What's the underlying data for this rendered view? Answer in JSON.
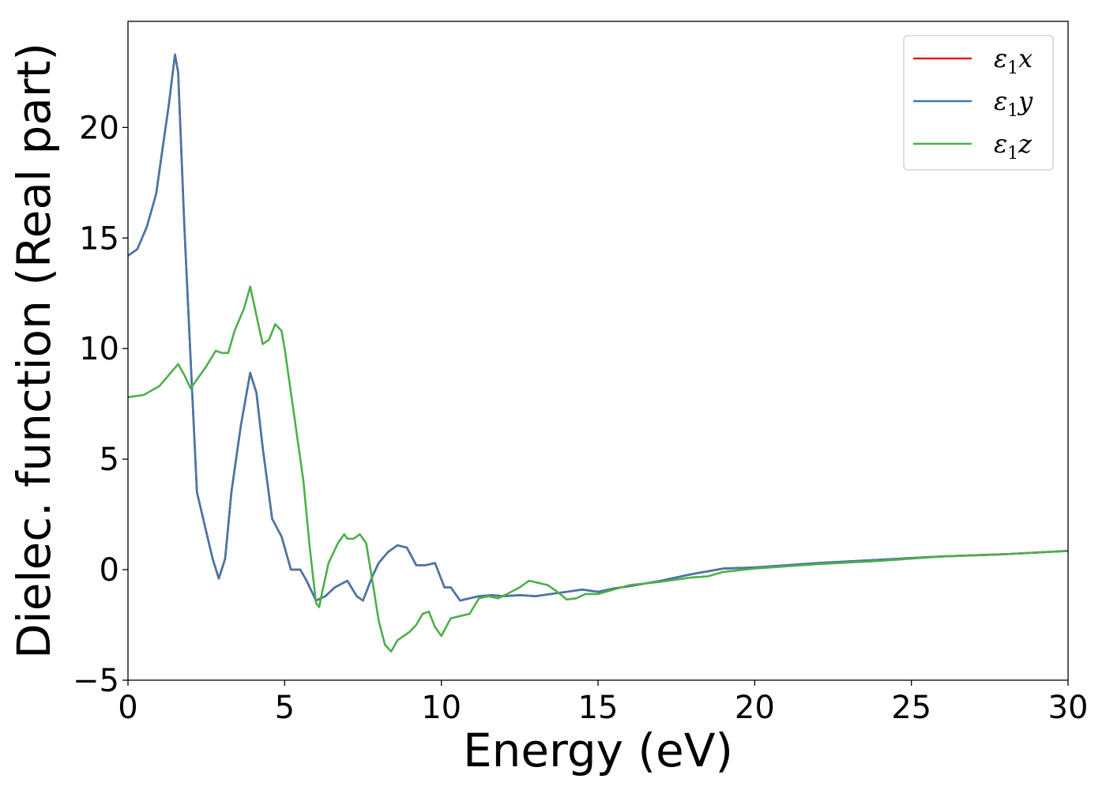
{
  "chart_data": {
    "type": "line",
    "xlabel": "Energy (eV)",
    "ylabel": "Dielec. function (Real part)",
    "xlim": [
      0,
      30
    ],
    "ylim": [
      -5,
      24.8
    ],
    "xticks": [
      0,
      5,
      10,
      15,
      20,
      25,
      30
    ],
    "yticks": [
      -5,
      0,
      5,
      10,
      15,
      20
    ],
    "xtick_labels": [
      "0",
      "5",
      "10",
      "15",
      "20",
      "25",
      "30"
    ],
    "ytick_labels": [
      "−5",
      "0",
      "5",
      "10",
      "15",
      "20"
    ],
    "grid": false,
    "legend_position": "top-right",
    "series": [
      {
        "name": "ε1x",
        "legend_main": "ε",
        "legend_sub": "1",
        "legend_axis": "x",
        "color": "#e41a1c",
        "x": [
          0,
          0.3,
          0.6,
          0.9,
          1.1,
          1.3,
          1.5,
          1.6,
          1.8,
          2.0,
          2.2,
          2.4,
          2.7,
          2.9,
          3.1,
          3.3,
          3.6,
          3.9,
          4.1,
          4.3,
          4.6,
          4.9,
          5.2,
          5.5,
          5.7,
          6.0,
          6.3,
          6.6,
          7.0,
          7.3,
          7.5,
          7.8,
          8.0,
          8.3,
          8.6,
          8.9,
          9.2,
          9.5,
          9.8,
          10.1,
          10.3,
          10.6,
          10.9,
          11.2,
          11.6,
          12.0,
          12.5,
          13.0,
          13.5,
          14.0,
          14.5,
          15.0,
          15.5,
          16.0,
          17.0,
          18.0,
          19.0,
          20.0,
          22.0,
          24.0,
          26.0,
          28.0,
          30.0
        ],
        "values": [
          14.2,
          14.5,
          15.5,
          17.0,
          19.0,
          21.0,
          23.3,
          22.5,
          15.5,
          9.5,
          3.5,
          2.3,
          0.5,
          -0.4,
          0.5,
          3.5,
          6.5,
          8.9,
          8.0,
          5.5,
          2.3,
          1.5,
          0.0,
          0.0,
          -0.5,
          -1.4,
          -1.2,
          -0.8,
          -0.5,
          -1.2,
          -1.4,
          -0.3,
          0.3,
          0.8,
          1.1,
          1.0,
          0.2,
          0.2,
          0.3,
          -0.8,
          -0.8,
          -1.4,
          -1.3,
          -1.2,
          -1.15,
          -1.2,
          -1.15,
          -1.2,
          -1.1,
          -1.0,
          -0.9,
          -1.0,
          -0.85,
          -0.75,
          -0.5,
          -0.2,
          0.05,
          0.1,
          0.3,
          0.45,
          0.6,
          0.7,
          0.85
        ]
      },
      {
        "name": "ε1y",
        "legend_main": "ε",
        "legend_sub": "1",
        "legend_axis": "y",
        "color": "#4477aa",
        "x": [
          0,
          0.3,
          0.6,
          0.9,
          1.1,
          1.3,
          1.5,
          1.6,
          1.8,
          2.0,
          2.2,
          2.4,
          2.7,
          2.9,
          3.1,
          3.3,
          3.6,
          3.9,
          4.1,
          4.3,
          4.6,
          4.9,
          5.2,
          5.5,
          5.7,
          6.0,
          6.3,
          6.6,
          7.0,
          7.3,
          7.5,
          7.8,
          8.0,
          8.3,
          8.6,
          8.9,
          9.2,
          9.5,
          9.8,
          10.1,
          10.3,
          10.6,
          10.9,
          11.2,
          11.6,
          12.0,
          12.5,
          13.0,
          13.5,
          14.0,
          14.5,
          15.0,
          15.5,
          16.0,
          17.0,
          18.0,
          19.0,
          20.0,
          22.0,
          24.0,
          26.0,
          28.0,
          30.0
        ],
        "values": [
          14.2,
          14.5,
          15.5,
          17.0,
          19.0,
          21.0,
          23.3,
          22.5,
          15.5,
          9.5,
          3.5,
          2.3,
          0.5,
          -0.4,
          0.5,
          3.5,
          6.5,
          8.9,
          8.0,
          5.5,
          2.3,
          1.5,
          0.0,
          0.0,
          -0.5,
          -1.4,
          -1.2,
          -0.8,
          -0.5,
          -1.2,
          -1.4,
          -0.3,
          0.3,
          0.8,
          1.1,
          1.0,
          0.2,
          0.2,
          0.3,
          -0.8,
          -0.8,
          -1.4,
          -1.3,
          -1.2,
          -1.15,
          -1.2,
          -1.15,
          -1.2,
          -1.1,
          -1.0,
          -0.9,
          -1.0,
          -0.85,
          -0.75,
          -0.5,
          -0.2,
          0.05,
          0.1,
          0.3,
          0.45,
          0.6,
          0.7,
          0.85
        ]
      },
      {
        "name": "ε1z",
        "legend_main": "ε",
        "legend_sub": "1",
        "legend_axis": "z",
        "color": "#4daf4a",
        "x": [
          0,
          0.5,
          1.0,
          1.3,
          1.6,
          1.8,
          2.0,
          2.2,
          2.5,
          2.8,
          3.0,
          3.2,
          3.4,
          3.7,
          3.9,
          4.1,
          4.3,
          4.5,
          4.7,
          4.9,
          5.0,
          5.2,
          5.4,
          5.6,
          5.8,
          6.0,
          6.1,
          6.2,
          6.4,
          6.7,
          6.9,
          7.0,
          7.2,
          7.4,
          7.6,
          7.8,
          8.0,
          8.2,
          8.4,
          8.6,
          8.8,
          9.0,
          9.2,
          9.4,
          9.6,
          9.8,
          10.0,
          10.3,
          10.6,
          10.9,
          11.2,
          11.5,
          11.8,
          12.1,
          12.5,
          12.8,
          13.1,
          13.4,
          13.7,
          14.0,
          14.3,
          14.6,
          15.0,
          15.5,
          16.0,
          17.0,
          18.0,
          18.5,
          19.0,
          20.0,
          22.0,
          24.0,
          26.0,
          28.0,
          30.0
        ],
        "values": [
          7.8,
          7.9,
          8.3,
          8.8,
          9.3,
          8.8,
          8.2,
          8.6,
          9.2,
          9.9,
          9.8,
          9.8,
          10.8,
          11.8,
          12.8,
          11.5,
          10.2,
          10.4,
          11.1,
          10.8,
          10.0,
          8.0,
          6.0,
          4.0,
          1.0,
          -1.5,
          -1.7,
          -1.0,
          0.3,
          1.2,
          1.6,
          1.4,
          1.4,
          1.6,
          1.2,
          -0.5,
          -2.3,
          -3.4,
          -3.7,
          -3.2,
          -3.0,
          -2.8,
          -2.5,
          -2.0,
          -1.9,
          -2.6,
          -3.0,
          -2.2,
          -2.1,
          -2.0,
          -1.3,
          -1.2,
          -1.3,
          -1.1,
          -0.8,
          -0.5,
          -0.6,
          -0.7,
          -1.0,
          -1.35,
          -1.3,
          -1.1,
          -1.1,
          -0.9,
          -0.7,
          -0.55,
          -0.35,
          -0.3,
          -0.1,
          0.05,
          0.25,
          0.4,
          0.6,
          0.7,
          0.85
        ]
      }
    ]
  }
}
